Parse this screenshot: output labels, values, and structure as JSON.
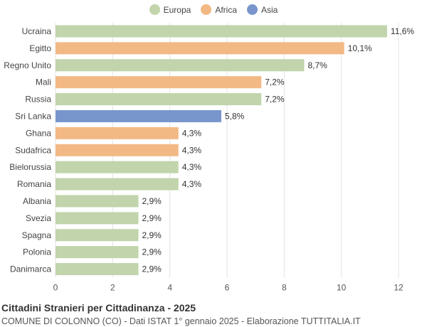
{
  "colors": {
    "europa": "#c1d4ab",
    "africa": "#f2b985",
    "asia": "#7896cc"
  },
  "legend": [
    {
      "label": "Europa",
      "color": "#c1d4ab"
    },
    {
      "label": "Africa",
      "color": "#f2b985"
    },
    {
      "label": "Asia",
      "color": "#7896cc"
    }
  ],
  "chart_data": {
    "type": "bar",
    "orientation": "horizontal",
    "categories": [
      "Ucraina",
      "Egitto",
      "Regno Unito",
      "Mali",
      "Russia",
      "Sri Lanka",
      "Ghana",
      "Sudafrica",
      "Bielorussia",
      "Romania",
      "Albania",
      "Svezia",
      "Spagna",
      "Polonia",
      "Danimarca"
    ],
    "values": [
      11.6,
      10.1,
      8.7,
      7.2,
      7.2,
      5.8,
      4.3,
      4.3,
      4.3,
      4.3,
      2.9,
      2.9,
      2.9,
      2.9,
      2.9
    ],
    "value_labels": [
      "11,6%",
      "10,1%",
      "8,7%",
      "7,2%",
      "7,2%",
      "5,8%",
      "4,3%",
      "4,3%",
      "4,3%",
      "4,3%",
      "2,9%",
      "2,9%",
      "2,9%",
      "2,9%",
      "2,9%"
    ],
    "groups": [
      "Europa",
      "Africa",
      "Europa",
      "Africa",
      "Europa",
      "Asia",
      "Africa",
      "Africa",
      "Europa",
      "Europa",
      "Europa",
      "Europa",
      "Europa",
      "Europa",
      "Europa"
    ],
    "xlim": [
      0,
      12
    ],
    "xticks": [
      0,
      2,
      4,
      6,
      8,
      10,
      12
    ],
    "grid": true,
    "legend_position": "top-center"
  },
  "footer": {
    "title": "Cittadini Stranieri per Cittadinanza - 2025",
    "subtitle": "COMUNE DI COLONNO (CO) - Dati ISTAT 1° gennaio 2025 - Elaborazione TUTTITALIA.IT"
  }
}
